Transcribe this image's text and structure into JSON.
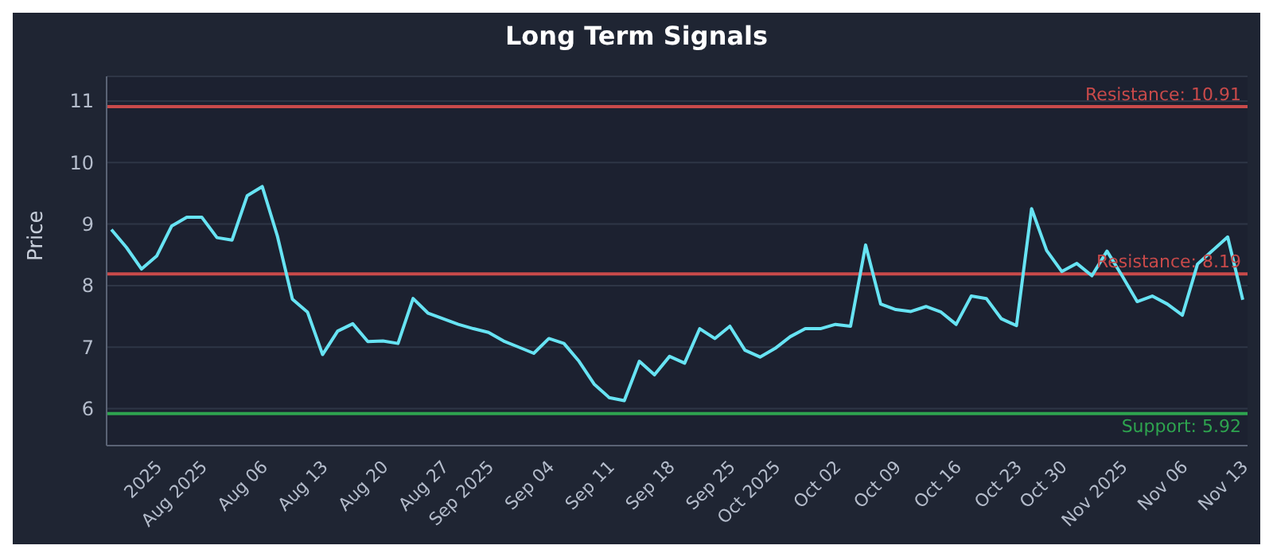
{
  "chart_data": {
    "type": "line",
    "title": "Long Term Signals",
    "ylabel": "Price",
    "categories": [
      null,
      null,
      null,
      "2025",
      null,
      null,
      "Aug 2025",
      null,
      null,
      null,
      "Aug 06",
      null,
      null,
      null,
      "Aug 13",
      null,
      null,
      null,
      "Aug 20",
      null,
      null,
      null,
      "Aug 27",
      null,
      null,
      "Sep 2025",
      null,
      null,
      null,
      "Sep 04",
      null,
      null,
      null,
      "Sep 11",
      null,
      null,
      null,
      "Sep 18",
      null,
      null,
      null,
      "Sep 25",
      null,
      null,
      "Oct 2025",
      null,
      null,
      null,
      "Oct 02",
      null,
      null,
      null,
      "Oct 09",
      null,
      null,
      null,
      "Oct 16",
      null,
      null,
      null,
      "Oct 23",
      null,
      null,
      "Oct 30",
      null,
      null,
      null,
      "Nov 2025",
      null,
      null,
      null,
      "Nov 06",
      null,
      null,
      null,
      "Nov 13"
    ],
    "series": [
      {
        "color": "#67e3f3",
        "values": [
          8.91,
          8.62,
          8.27,
          8.48,
          8.97,
          9.11,
          9.11,
          8.78,
          8.74,
          9.46,
          9.61,
          8.81,
          7.78,
          7.57,
          6.88,
          7.26,
          7.38,
          7.09,
          7.1,
          7.06,
          7.79,
          7.55,
          7.46,
          7.37,
          7.3,
          7.24,
          7.1,
          7.0,
          6.9,
          7.14,
          7.06,
          6.77,
          6.4,
          6.18,
          6.13,
          6.77,
          6.55,
          6.85,
          6.74,
          7.3,
          7.14,
          7.34,
          6.95,
          6.84,
          6.98,
          7.17,
          7.3,
          7.3,
          7.37,
          7.34,
          8.66,
          7.7,
          7.61,
          7.58,
          7.66,
          7.57,
          7.37,
          7.83,
          7.79,
          7.46,
          7.35,
          9.25,
          8.57,
          8.23,
          8.36,
          8.16,
          8.56,
          8.16,
          7.74,
          7.83,
          7.7,
          7.52,
          8.35,
          8.57,
          8.79,
          7.77
        ]
      }
    ],
    "ylim": [
      5.4,
      11.4
    ],
    "yticks": [
      6,
      7,
      8,
      9,
      10,
      11
    ],
    "grid": "y",
    "ref_lines": [
      {
        "axis": "y",
        "value": 10.91,
        "label": "Resistance: 10.91",
        "color": "#c94a4a"
      },
      {
        "axis": "y",
        "value": 8.19,
        "label": "Resistance: 8.19",
        "color": "#c94a4a"
      },
      {
        "axis": "y",
        "value": 5.92,
        "label": "Support: 5.92",
        "color": "#2ea44f"
      }
    ]
  }
}
